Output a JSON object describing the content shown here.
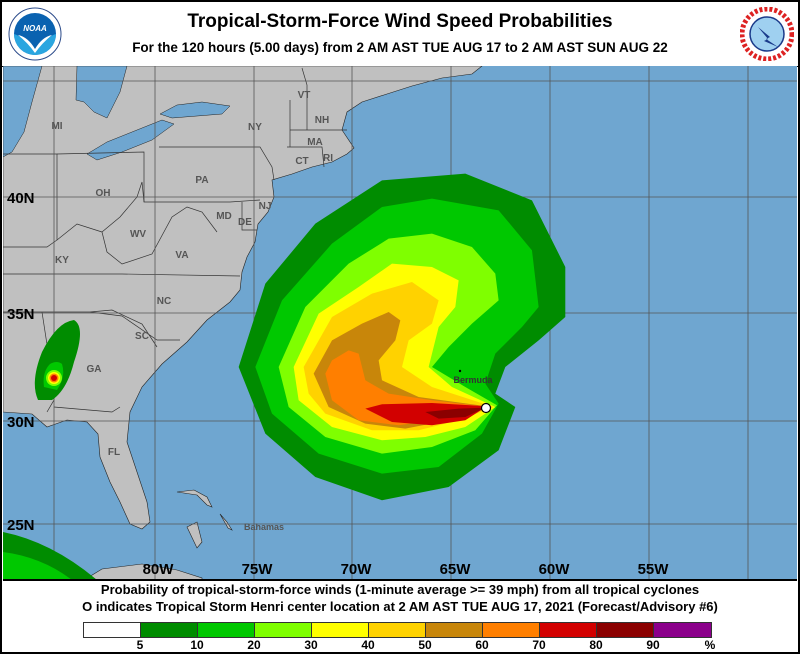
{
  "header": {
    "title": "Tropical-Storm-Force Wind Speed Probabilities",
    "subtitle": "For the 120 hours (5.00 days) from 2 AM AST TUE AUG 17 to 2 AM AST SUN AUG 22",
    "left_logo": "NOAA",
    "right_logo": "NATIONAL WEATHER SERVICE"
  },
  "map": {
    "colors": {
      "ocean": "#6fa6d0",
      "land": "#c0c0c0"
    },
    "lat_labels": [
      "40N",
      "35N",
      "30N",
      "25N"
    ],
    "lon_labels": [
      "80W",
      "75W",
      "70W",
      "65W",
      "60W",
      "55W"
    ],
    "place_labels": {
      "mi": "MI",
      "oh": "OH",
      "pa": "PA",
      "ny": "NY",
      "vt": "VT",
      "nh": "NH",
      "ma": "MA",
      "ct": "CT",
      "ri": "RI",
      "nj": "NJ",
      "md": "MD",
      "de": "DE",
      "wv": "WV",
      "va": "VA",
      "ky": "KY",
      "nc": "NC",
      "sc": "SC",
      "ga": "GA",
      "fl": "FL",
      "bahamas": "Bahamas",
      "bermuda": "Bermuda"
    },
    "storm_center": "Tropical Storm Henri"
  },
  "footer": {
    "line1": "Probability of tropical-storm-force winds (1-minute average >= 39 mph) from all tropical cyclones",
    "line2": "O indicates Tropical Storm Henri center location at 2 AM AST TUE AUG 17, 2021 (Forecast/Advisory #6)",
    "legend": {
      "colors": [
        "#ffffff",
        "#008c00",
        "#00c800",
        "#7fff00",
        "#ffff00",
        "#ffd200",
        "#c8860a",
        "#ff7f00",
        "#d20000",
        "#8b0000",
        "#8b008b"
      ],
      "ticks": [
        "5",
        "10",
        "20",
        "30",
        "40",
        "50",
        "60",
        "70",
        "80",
        "90",
        "%"
      ]
    }
  }
}
